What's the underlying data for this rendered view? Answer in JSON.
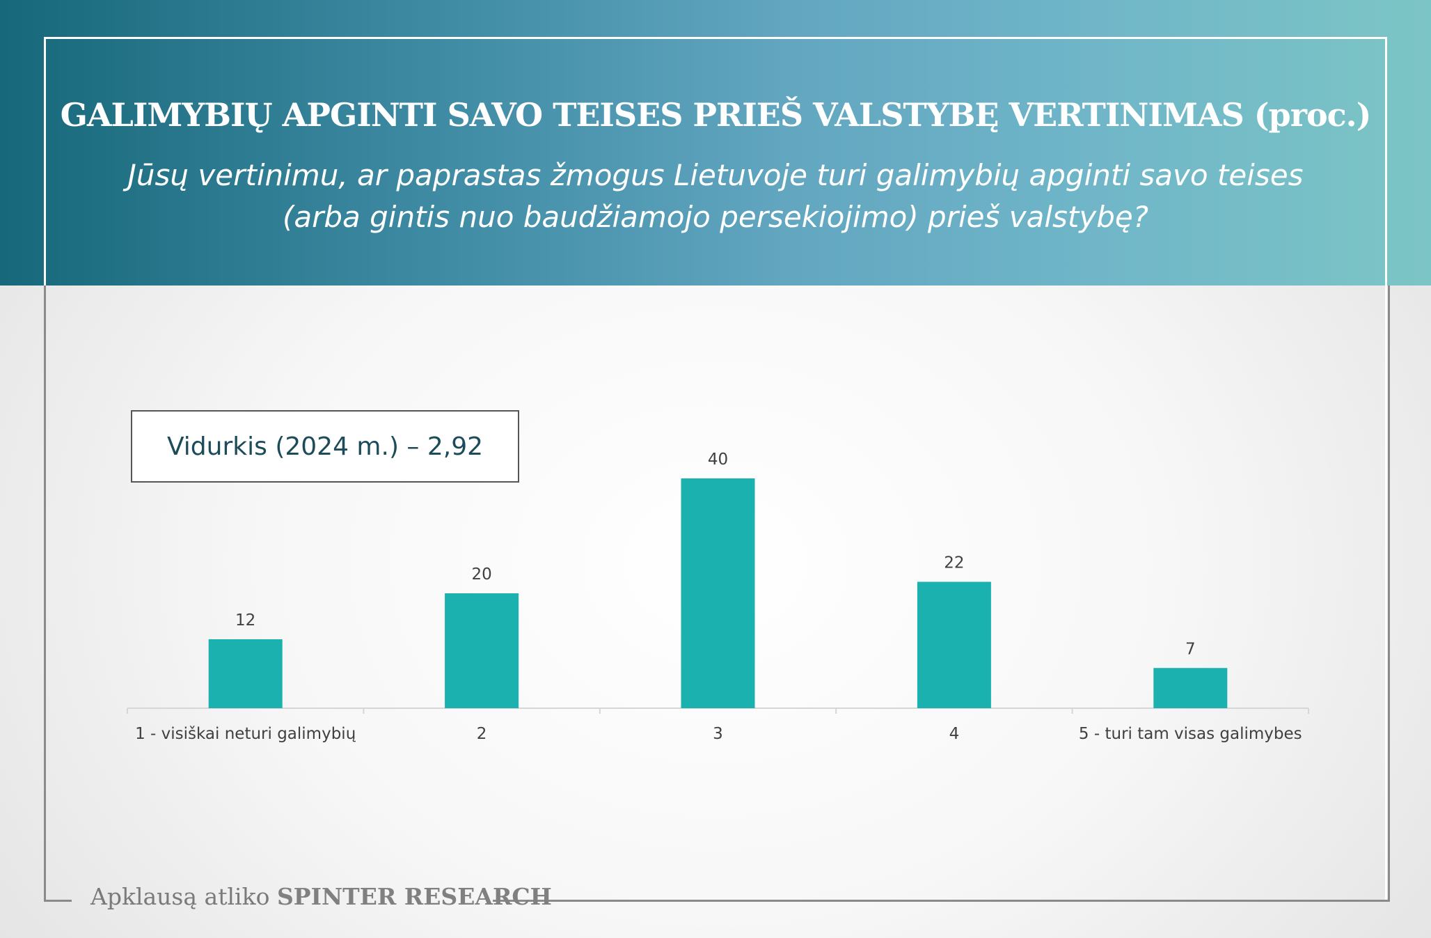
{
  "header": {
    "title": "GALIMYBIŲ APGINTI SAVO TEISES PRIEŠ VALSTYBĘ VERTINIMAS (proc.)",
    "subtitle_line1": "Jūsų vertinimu, ar paprastas žmogus Lietuvoje turi galimybių apginti savo teises",
    "subtitle_line2": "(arba gintis nuo baudžiamojo persekiojimo) prieš valstybę?"
  },
  "average_label": "Vidurkis (2024 m.) – 2,92",
  "footer": {
    "prefix": "Apklausą atliko ",
    "brand": "SPINTER RESEARCH"
  },
  "colors": {
    "bar": "#1bb1ae",
    "header_start": "#17687a",
    "header_end": "#7cc5c6"
  },
  "chart_data": {
    "type": "bar",
    "title": "GALIMYBIŲ APGINTI SAVO TEISES PRIEŠ VALSTYBĘ VERTINIMAS (proc.)",
    "categories": [
      "1 - visiškai neturi galimybių",
      "2",
      "3",
      "4",
      "5 - turi tam visas galimybes"
    ],
    "values": [
      12,
      20,
      40,
      22,
      7
    ],
    "xlabel": "",
    "ylabel": "",
    "ylim": [
      0,
      40
    ],
    "grid": false,
    "legend": "none"
  }
}
